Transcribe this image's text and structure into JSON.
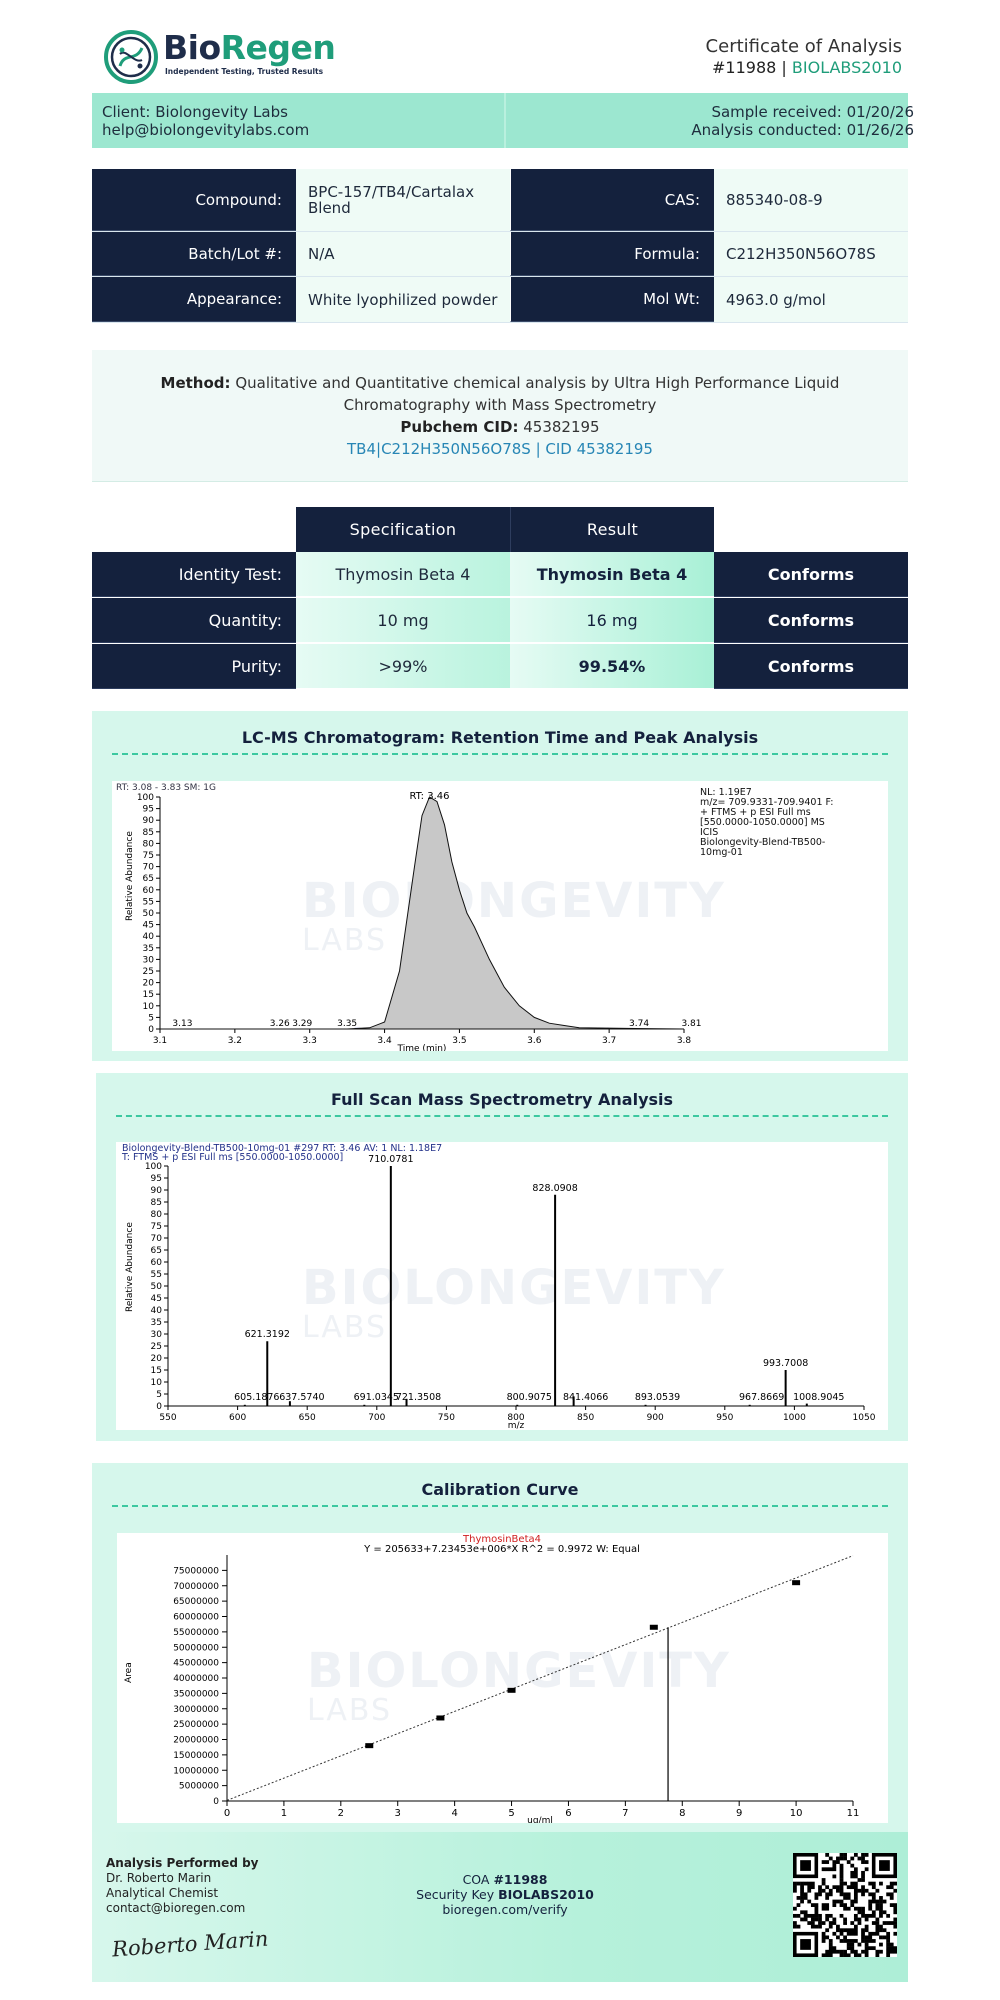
{
  "header": {
    "brand_part1": "Bio",
    "brand_part2": "Regen",
    "tagline": "Independent Testing, Trusted Results",
    "doc_title": "Certificate of Analysis",
    "coa_number": "#11988",
    "separator": "|",
    "lab_code": "BIOLABS2010"
  },
  "client": {
    "name": "Client: Biolongevity Labs",
    "email": "help@biolongevitylabs.com",
    "sample_received": "Sample received: 01/20/26",
    "analysis_conducted": "Analysis conducted: 01/26/26"
  },
  "info": {
    "compound_label": "Compound:",
    "compound_value": "BPC-157/TB4/Cartalax Blend",
    "batch_label": "Batch/Lot #:",
    "batch_value": "N/A",
    "appearance_label": "Appearance:",
    "appearance_value": "White lyophilized powder",
    "cas_label": "CAS:",
    "cas_value": "885340-08-9",
    "formula_label": "Formula:",
    "formula_value": "C212H350N56O78S",
    "molwt_label": "Mol Wt:",
    "molwt_value": "4963.0 g/mol"
  },
  "method": {
    "label": "Method:",
    "text": "Qualitative and Quantitative chemical analysis by Ultra High Performance Liquid Chromatography with Mass Spectrometry",
    "pubchem_label": "Pubchem CID:",
    "pubchem_value": "45382195",
    "cid_link": "TB4|C212H350N56O78S | CID 45382195"
  },
  "spec_table": {
    "spec_header": "Specification",
    "result_header": "Result",
    "rows": [
      {
        "label": "Identity Test:",
        "spec": "Thymosin Beta 4",
        "result": "Thymosin Beta 4",
        "status": "Conforms"
      },
      {
        "label": "Quantity:",
        "spec": "10 mg",
        "result": "16 mg",
        "status": "Conforms"
      },
      {
        "label": "Purity:",
        "spec": ">99%",
        "result": "99.54%",
        "status": "Conforms"
      }
    ]
  },
  "watermark": {
    "line1": "BIOLONGEVITY",
    "line2": "LABS"
  },
  "charts": {
    "lcms_title": "LC-MS Chromatogram: Retention Time and Peak Analysis",
    "ms_title": "Full Scan Mass Spectrometry Analysis",
    "cal_title": "Calibration Curve"
  },
  "chart_data": [
    {
      "type": "line",
      "title": "LC-MS Chromatogram: Retention Time and Peak Analysis",
      "xlabel": "Time (min)",
      "ylabel": "Relative Abundance",
      "xlim": [
        3.1,
        3.8
      ],
      "ylim": [
        0,
        100
      ],
      "x_ticks": [
        "3.1",
        "3.2",
        "3.3",
        "3.4",
        "3.5",
        "3.6",
        "3.7",
        "3.8"
      ],
      "y_ticks": [
        "0",
        "5",
        "10",
        "15",
        "20",
        "25",
        "30",
        "35",
        "40",
        "45",
        "50",
        "55",
        "60",
        "65",
        "70",
        "75",
        "80",
        "85",
        "90",
        "95",
        "100"
      ],
      "header_text": "RT: 3.08 - 3.83  SM: 1G",
      "info_text": [
        "NL: 1.19E7",
        "m/z= 709.9331-709.9401 F:",
        "+ FTMS + p ESI Full ms",
        "[550.0000-1050.0000]  MS",
        "ICIS",
        "Biolongevity-Blend-TB500-",
        "10mg-01"
      ],
      "peak_label": "RT: 3.46",
      "annotations": [
        "3.13",
        "3.26",
        "3.29",
        "3.35",
        "3.74",
        "3.81"
      ],
      "series": [
        {
          "x": [
            3.1,
            3.35,
            3.38,
            3.4,
            3.42,
            3.44,
            3.45,
            3.46,
            3.47,
            3.48,
            3.49,
            3.5,
            3.51,
            3.52,
            3.54,
            3.56,
            3.58,
            3.6,
            3.62,
            3.64,
            3.66,
            3.8
          ],
          "y": [
            0,
            0,
            0.5,
            3,
            25,
            70,
            92,
            100,
            98,
            88,
            72,
            60,
            50,
            44,
            30,
            18,
            10,
            5,
            2.5,
            1.5,
            0.5,
            0
          ]
        }
      ]
    },
    {
      "type": "bar",
      "title": "Full Scan Mass Spectrometry Analysis",
      "xlabel": "m/z",
      "ylabel": "Relative Abundance",
      "xlim": [
        550,
        1050
      ],
      "ylim": [
        0,
        100
      ],
      "x_ticks": [
        "550",
        "600",
        "650",
        "700",
        "750",
        "800",
        "850",
        "900",
        "950",
        "1000",
        "1050"
      ],
      "y_ticks": [
        "0",
        "5",
        "10",
        "15",
        "20",
        "25",
        "30",
        "35",
        "40",
        "45",
        "50",
        "55",
        "60",
        "65",
        "70",
        "75",
        "80",
        "85",
        "90",
        "95",
        "100"
      ],
      "header_line1": "Biolongevity-Blend-TB500-10mg-01 #297  RT: 3.46  AV: 1  NL: 1.18E7",
      "header_line2": "T: FTMS + p ESI Full ms [550.0000-1050.0000]",
      "peaks": [
        {
          "mz": 605.1876,
          "value": 0.5,
          "label": "605.1876"
        },
        {
          "mz": 621.3192,
          "value": 27,
          "label": "621.3192"
        },
        {
          "mz": 637.574,
          "value": 2,
          "label": "637.5740"
        },
        {
          "mz": 691.0345,
          "value": 0.5,
          "label": "691.0345"
        },
        {
          "mz": 710.0781,
          "value": 100,
          "label": "710.0781"
        },
        {
          "mz": 721.3508,
          "value": 3,
          "label": "721.3508"
        },
        {
          "mz": 800.9075,
          "value": 0.5,
          "label": "800.9075"
        },
        {
          "mz": 828.0908,
          "value": 88,
          "label": "828.0908"
        },
        {
          "mz": 841.4066,
          "value": 4,
          "label": "841.4066"
        },
        {
          "mz": 893.0539,
          "value": 0.5,
          "label": "893.0539"
        },
        {
          "mz": 967.8669,
          "value": 0.5,
          "label": "967.8669"
        },
        {
          "mz": 993.7008,
          "value": 15,
          "label": "993.7008"
        },
        {
          "mz": 1008.9045,
          "value": 1,
          "label": "1008.9045"
        }
      ]
    },
    {
      "type": "scatter",
      "title": "Calibration Curve",
      "subtitle": "ThymosinBeta4",
      "equation": "Y = 205633+7.23453e+006*X   R^2 = 0.9972   W: Equal",
      "xlabel": "ug/ml",
      "ylabel": "Area",
      "xlim": [
        0,
        11
      ],
      "ylim": [
        0,
        80000000
      ],
      "x_ticks": [
        "0",
        "1",
        "2",
        "3",
        "4",
        "5",
        "6",
        "7",
        "8",
        "9",
        "10",
        "11"
      ],
      "y_ticks": [
        "0",
        "5000000",
        "10000000",
        "15000000",
        "20000000",
        "25000000",
        "30000000",
        "35000000",
        "40000000",
        "45000000",
        "50000000",
        "55000000",
        "60000000",
        "65000000",
        "70000000",
        "75000000"
      ],
      "points": {
        "x": [
          2.5,
          3.75,
          5,
          7.5,
          10
        ],
        "y": [
          18000000,
          27000000,
          36000000,
          56500000,
          71000000
        ]
      },
      "sample_line_x": 7.75,
      "fit_line": {
        "x": [
          0,
          11
        ],
        "y": [
          205633,
          79785463
        ]
      }
    }
  ],
  "footer": {
    "performed_by": "Analysis Performed by",
    "analyst_name": "Dr. Roberto Marin",
    "analyst_title": "Analytical Chemist",
    "analyst_email": "contact@bioregen.com",
    "signature": "Roberto Marin",
    "coa_label": "COA",
    "coa_number": "#11988",
    "security_label": "Security Key",
    "security_key": "BIOLABS2010",
    "verify_url": "bioregen.com/verify"
  },
  "colors": {
    "navy": "#14213d",
    "mint": "#9ce7d0",
    "accent": "#1f9d7a",
    "link": "#2786b5"
  }
}
